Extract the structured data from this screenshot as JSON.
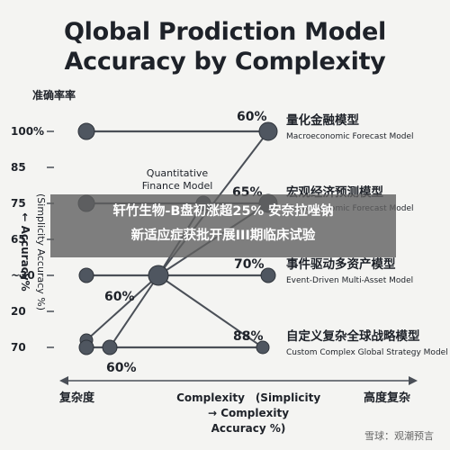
{
  "chart_data": {
    "type": "line",
    "title": "Qlobal Prodiction Model",
    "subtitle": "Accuracy by Complexity",
    "y_axis_title": "准确率率",
    "y_axis_side_label": "← Accuracy%",
    "y_axis_side_label2": "(Simplicity Accuracy %)",
    "y_ticks": [
      "100%",
      "85",
      "75",
      "65",
      "~30",
      "20",
      "70"
    ],
    "x_axis_left_label": "复杂度",
    "x_axis_center_label_1": "Complexity",
    "x_axis_center_label_2": "(Simplicity",
    "x_axis_center_label_3": "→ Complexity",
    "x_axis_center_label_4": "Accuracy %)",
    "x_axis_right_label": "高度复杂",
    "center_annotation_1": "Quantitative",
    "center_annotation_2": "Finance Model",
    "data_labels": [
      "60%",
      "65%",
      "60%",
      "70%",
      "88%",
      "60%"
    ],
    "series": [
      {
        "name": "量化金融模型",
        "subtitle": "Macroeconomic Forecast Model",
        "label": "60%"
      },
      {
        "name": "宏观经济预测模型",
        "subtitle": "Macroeconomic Forecast Model",
        "label": "65%"
      },
      {
        "name": "事件驱动多资产模型",
        "subtitle": "Event-Driven Multi-Asset Model",
        "label": "70%"
      },
      {
        "name": "自定义复杂全球战略模型",
        "subtitle": "Custom Complex Global Strategy Model",
        "label": "88%"
      }
    ]
  },
  "overlay": {
    "line1": "轩竹生物-B盘初涨超25% 安奈拉唑钠",
    "line2": "新适应症获批开展III期临床试验"
  },
  "watermark": "雪球：观潮预言",
  "colors": {
    "background": "#f4f4f2",
    "line": "#4a4f57",
    "marker": "#4f5660",
    "text": "#1e2229",
    "overlay": "#606060"
  }
}
